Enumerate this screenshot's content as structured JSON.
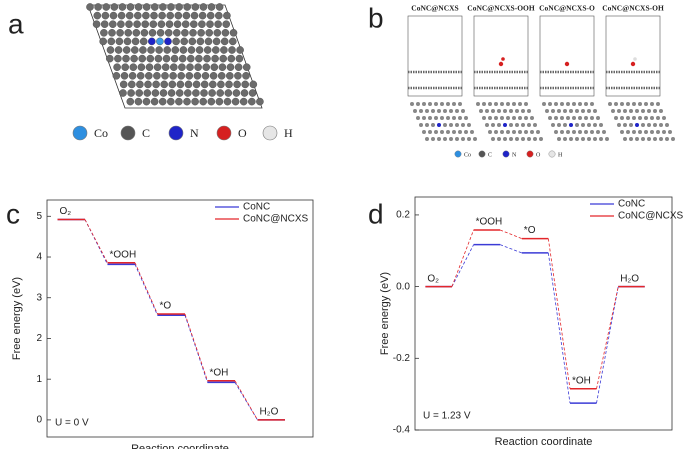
{
  "panel_labels": [
    "a",
    "b",
    "c",
    "d"
  ],
  "panels": {
    "a": {
      "legend": [
        "Co",
        "C",
        "N",
        "O",
        "H"
      ]
    },
    "b": {
      "titles": [
        "CoNC@NCXS",
        "CoNC@NCXS-OOH",
        "CoNC@NCXS-O",
        "CoNC@NCXS-OH"
      ],
      "legend": [
        "Co",
        "C",
        "N",
        "O",
        "H"
      ]
    }
  },
  "chart_data": [
    {
      "type": "energy_levels",
      "ylabel": "Free energy (eV)",
      "xlabel": "Reaction coordinate",
      "annotation": "U = 0 V",
      "categories": [
        "O₂",
        "*OOH",
        "*O",
        "*OH",
        "H₂O"
      ],
      "series": [
        {
          "name": "CoNC",
          "color": "#3b3bd6",
          "values": [
            4.92,
            3.82,
            2.57,
            0.92,
            0
          ]
        },
        {
          "name": "CoNC@NCXS",
          "color": "#e3262a",
          "values": [
            4.92,
            3.86,
            2.6,
            0.96,
            0
          ]
        }
      ],
      "ylim": [
        -0.42,
        5.4
      ],
      "yticks": [
        0,
        1,
        2,
        3,
        4,
        5
      ],
      "legend": "upper right"
    },
    {
      "type": "energy_levels",
      "ylabel": "Free energy (eV)",
      "xlabel": "Reaction coordinate",
      "annotation": "U = 1.23 V",
      "categories": [
        "O₂",
        "*OOH",
        "*O",
        "*OH",
        "H₂O"
      ],
      "series": [
        {
          "name": "CoNC",
          "color": "#3b3bd6",
          "values": [
            0,
            0.117,
            0.094,
            -0.325,
            0
          ]
        },
        {
          "name": "CoNC@NCXS",
          "color": "#e3262a",
          "values": [
            0,
            0.158,
            0.134,
            -0.285,
            0
          ]
        }
      ],
      "ylim": [
        -0.4,
        0.25
      ],
      "yticks": [
        {
          "value": -0.4,
          "label": "-0.4"
        },
        -0.2,
        {
          "value": 0,
          "label": "0.0"
        },
        0.2
      ],
      "legend": "upper right"
    }
  ]
}
